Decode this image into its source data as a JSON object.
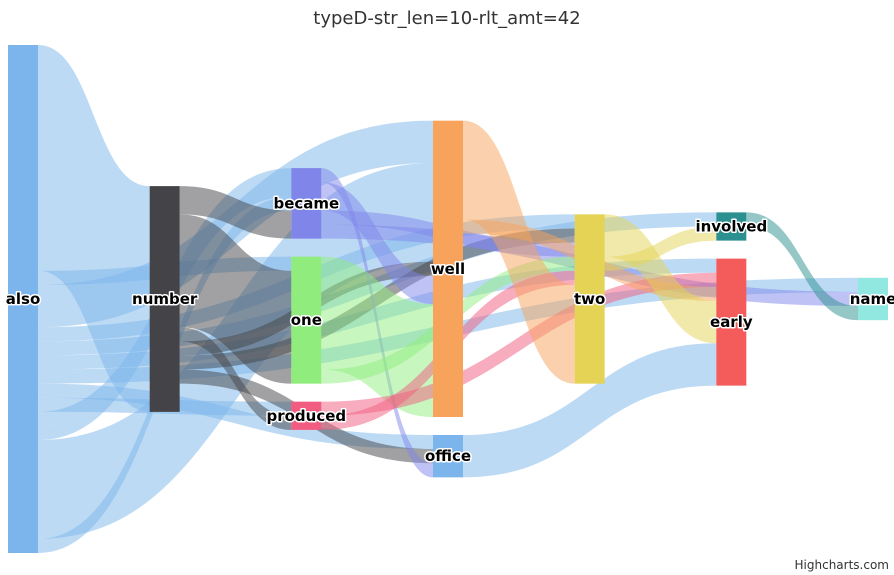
{
  "chart_data": {
    "type": "sankey",
    "title": "typeD-str_len=10-rlt_amt=42",
    "credits": "Highcharts.com",
    "nodes": [
      {
        "id": "also",
        "color": "#7cb5ec"
      },
      {
        "id": "number",
        "color": "#434348"
      },
      {
        "id": "became",
        "color": "#8085e9"
      },
      {
        "id": "one",
        "color": "#90ed7d"
      },
      {
        "id": "produced",
        "color": "#f15c80"
      },
      {
        "id": "well",
        "color": "#f7a35c"
      },
      {
        "id": "two",
        "color": "#e4d354"
      },
      {
        "id": "involved",
        "color": "#2b908f"
      },
      {
        "id": "office",
        "color": "#7cb5ec"
      },
      {
        "id": "early",
        "color": "#f45b5b"
      },
      {
        "id": "name",
        "color": "#91e8e1"
      }
    ],
    "links": [
      {
        "from": "also",
        "to": "number",
        "value": 16
      },
      {
        "from": "also",
        "to": "one",
        "value": 1
      },
      {
        "from": "also",
        "to": "well",
        "value": 3
      },
      {
        "from": "also",
        "to": "two",
        "value": 1
      },
      {
        "from": "also",
        "to": "involved",
        "value": 1
      },
      {
        "from": "also",
        "to": "early",
        "value": 1
      },
      {
        "from": "also",
        "to": "name",
        "value": 1
      },
      {
        "from": "also",
        "to": "office",
        "value": 1
      },
      {
        "from": "also",
        "to": "produced",
        "value": 1
      },
      {
        "from": "also",
        "to": "became",
        "value": 1
      },
      {
        "from": "also",
        "to": "became",
        "value": 1
      },
      {
        "from": "also",
        "to": "well",
        "value": 7
      },
      {
        "from": "also",
        "to": "became",
        "value": 1
      },
      {
        "from": "number",
        "to": "became",
        "value": 2
      },
      {
        "from": "number",
        "to": "one",
        "value": 8
      },
      {
        "from": "number",
        "to": "produced",
        "value": 1
      },
      {
        "from": "number",
        "to": "well",
        "value": 1
      },
      {
        "from": "number",
        "to": "two",
        "value": 1
      },
      {
        "from": "number",
        "to": "office",
        "value": 1
      },
      {
        "from": "became",
        "to": "office",
        "value": 1
      },
      {
        "from": "became",
        "to": "well",
        "value": 2
      },
      {
        "from": "became",
        "to": "two",
        "value": 1
      },
      {
        "from": "became",
        "to": "name",
        "value": 1
      },
      {
        "from": "one",
        "to": "well",
        "value": 8
      },
      {
        "from": "one",
        "to": "two",
        "value": 1
      },
      {
        "from": "produced",
        "to": "early",
        "value": 1
      },
      {
        "from": "produced",
        "to": "two",
        "value": 1
      },
      {
        "from": "well",
        "to": "two",
        "value": 7
      },
      {
        "from": "well",
        "to": "early",
        "value": 1
      },
      {
        "from": "two",
        "to": "early",
        "value": 3
      },
      {
        "from": "two",
        "to": "involved",
        "value": 1
      },
      {
        "from": "office",
        "to": "early",
        "value": 3
      },
      {
        "from": "involved",
        "to": "name",
        "value": 1
      }
    ]
  }
}
